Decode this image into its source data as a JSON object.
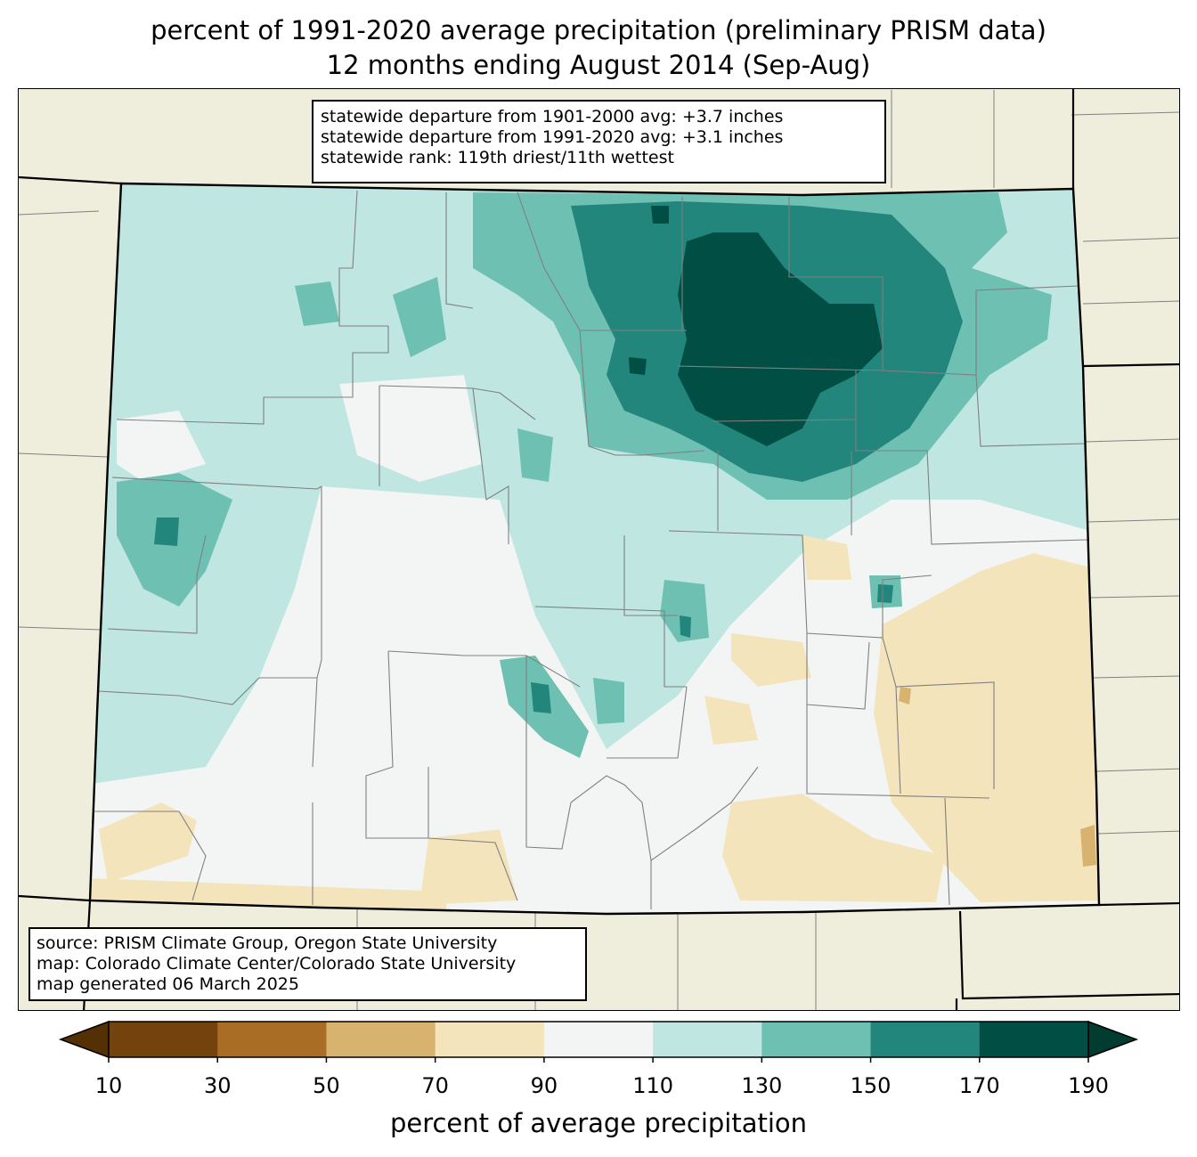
{
  "title": {
    "line1": "percent of 1991-2020 average precipitation (preliminary PRISM data)",
    "line2": "12 months ending August 2014 (Sep-Aug)"
  },
  "stats": {
    "line1": "statewide departure from 1901-2000 avg: +3.7 inches",
    "line2": "statewide departure from 1991-2020 avg: +3.1 inches",
    "line3": "statewide rank: 119th driest/11th wettest"
  },
  "source": {
    "line1": "source: PRISM Climate Group, Oregon State University",
    "line2": "map: Colorado Climate Center/Colorado State University",
    "line3": "map generated 06 March 2025"
  },
  "colorbar": {
    "label": "percent of average precipitation",
    "ticks": [
      "10",
      "30",
      "50",
      "70",
      "90",
      "110",
      "130",
      "150",
      "170",
      "190"
    ],
    "under_color": "#543005",
    "over_color": "#003c30",
    "colors": [
      "#74420c",
      "#aa6d25",
      "#d8b36f",
      "#f4e4bc",
      "#f3f5f4",
      "#bfe6e0",
      "#6dc0b2",
      "#22867d",
      "#014f44"
    ]
  },
  "map_colors": {
    "background": "#efeedc",
    "state_border": "#000000",
    "county_line": "#808080"
  }
}
